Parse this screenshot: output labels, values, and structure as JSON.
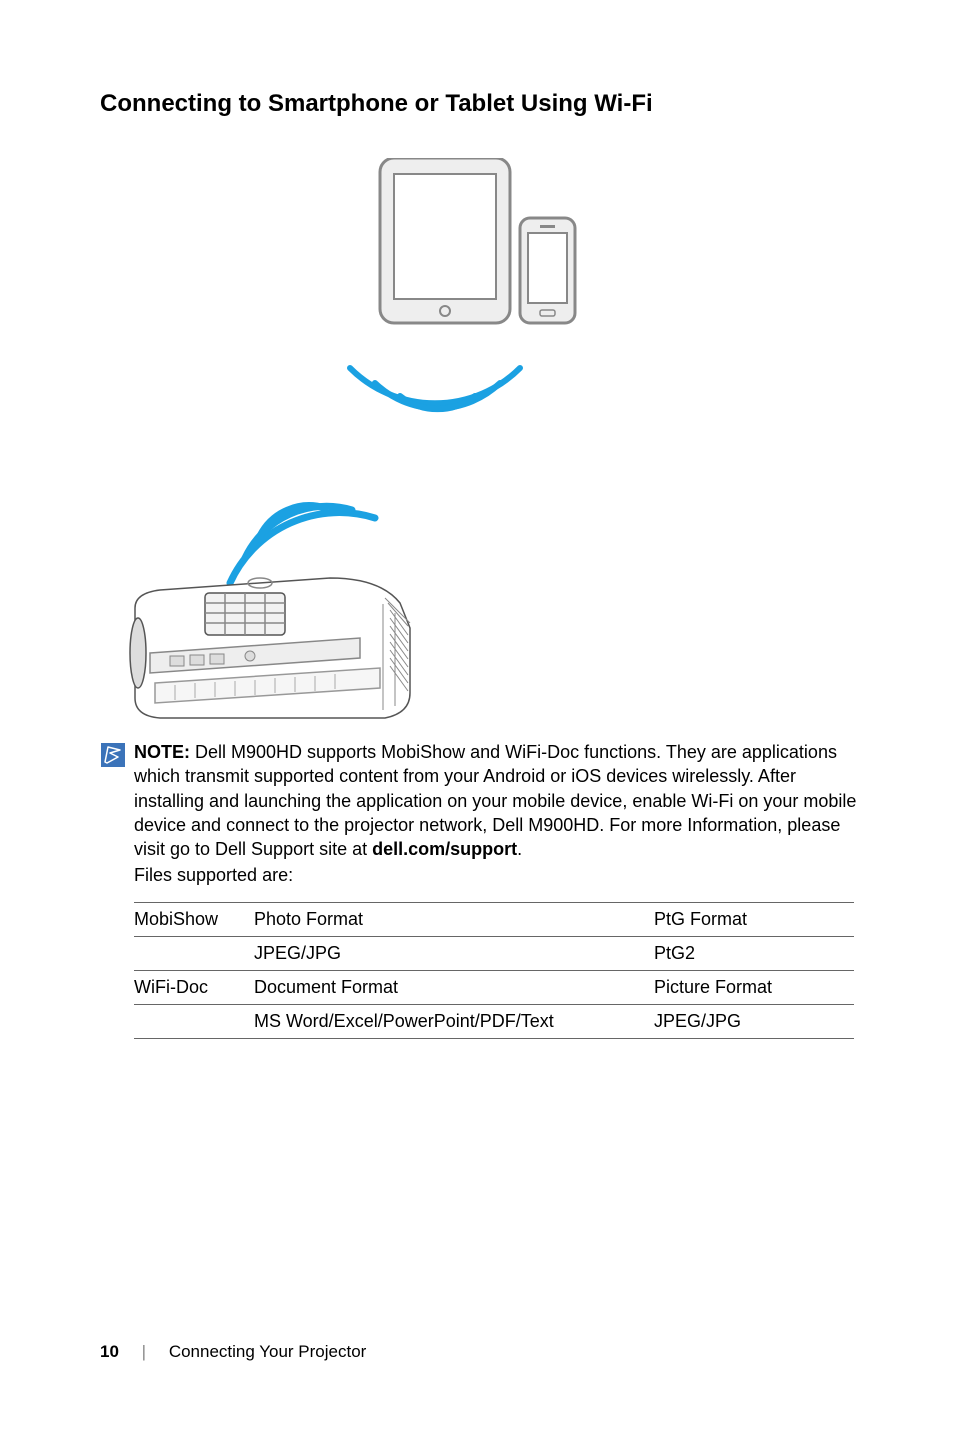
{
  "heading": "Connecting to Smartphone or Tablet Using Wi-Fi",
  "diagram": {
    "wifi_arc_color": "#1ba1e2",
    "device_outline": "#888888",
    "device_fill": "#eeeeee",
    "projector_stroke": "#555555"
  },
  "note": {
    "label": "NOTE:",
    "body_1": " Dell M900HD supports MobiShow and WiFi-Doc functions. They are applications which transmit supported content from your Android or iOS devices wirelessly. After installing and launching the application on your mobile device, enable Wi-Fi on your mobile device and connect to the projector network, Dell M900HD. For more Information, please visit go to Dell Support site at ",
    "support_link": "dell.com/support",
    "body_2": "."
  },
  "files_supported_label": "Files supported are:",
  "table": {
    "rows": [
      {
        "c1": "MobiShow",
        "c2": "Photo Format",
        "c3": "PtG Format"
      },
      {
        "c1": "",
        "c2": "JPEG/JPG",
        "c3": "PtG2"
      },
      {
        "c1": "WiFi-Doc",
        "c2": "Document Format",
        "c3": "Picture Format"
      },
      {
        "c1": "",
        "c2": "MS Word/Excel/PowerPoint/PDF/Text",
        "c3": "JPEG/JPG"
      }
    ],
    "col_widths": [
      "120px",
      "400px",
      "200px"
    ],
    "border_color": "#666666"
  },
  "footer": {
    "page_number": "10",
    "separator": "|",
    "section": "Connecting Your Projector"
  },
  "note_icon": {
    "fill": "#3b73b9",
    "stroke": "#ffffff"
  }
}
